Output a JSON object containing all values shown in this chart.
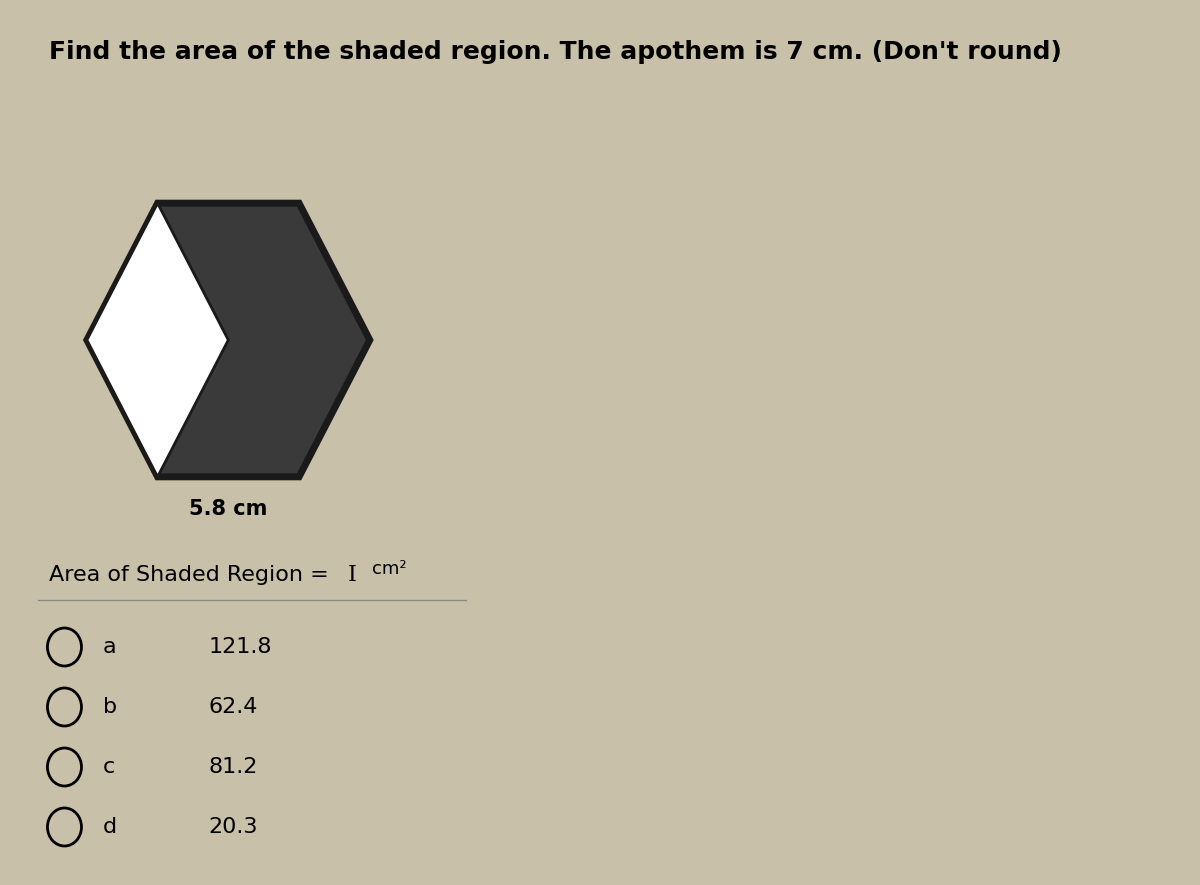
{
  "title": "Find the area of the shaded region. The apothem is 7 cm. (Don't round)",
  "title_fontsize": 18,
  "side_label": "5.8 cm",
  "area_label": "Area of Shaded Region = ",
  "area_unit": "cm²",
  "choices": [
    {
      "letter": "a",
      "value": "121.8"
    },
    {
      "letter": "b",
      "value": "62.4"
    },
    {
      "letter": "c",
      "value": "81.2"
    },
    {
      "letter": "d",
      "value": "20.3"
    }
  ],
  "bg_color": "#c8c0a8",
  "hex_fill": "#3a3a3a",
  "hex_edge": "#1a1a1a",
  "white_fill": "#ffffff",
  "text_color": "#000000",
  "fig_width": 12,
  "fig_height": 8.85
}
